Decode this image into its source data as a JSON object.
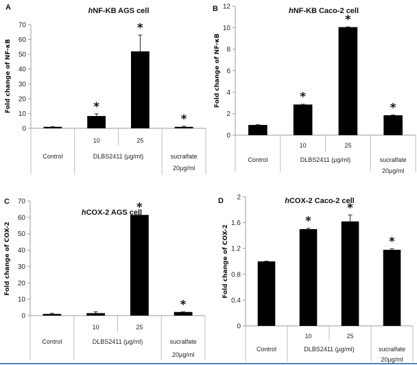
{
  "chart_data": [
    {
      "type": "bar",
      "panel_label": "A",
      "title_italic": "h",
      "title": "NF-KB AGS cell",
      "ylabel": "Fold change of NF-κB",
      "xlabel": "",
      "ylim": [
        0,
        70
      ],
      "yticks": [
        "0",
        "10",
        "20",
        "30",
        "40",
        "50",
        "60",
        "70"
      ],
      "categories": [
        "Control",
        "10",
        "25",
        "sucralfate 20µg/ml"
      ],
      "group_labels": {
        "control": "Control",
        "treatment": "DLBS2411 (µg/ml)",
        "sucralfate_line1": "sucralfate",
        "sucralfate_line2": "20µg/ml",
        "dose1": "10",
        "dose2": "25"
      },
      "values": [
        1.0,
        8.3,
        52.0,
        1.0
      ],
      "errors": [
        0.2,
        1.5,
        11.0,
        0.4
      ],
      "significant": [
        false,
        true,
        true,
        true
      ],
      "significance_marker": "*",
      "grid": false,
      "legend": "none"
    },
    {
      "type": "bar",
      "panel_label": "B",
      "title_italic": "h",
      "title": "NF-KB Caco-2 cell",
      "ylabel": "Fold change of NF-κB",
      "xlabel": "",
      "ylim": [
        0,
        12
      ],
      "yticks": [
        "0",
        "2",
        "4",
        "6",
        "8",
        "10",
        "12"
      ],
      "categories": [
        "Control",
        "10",
        "25",
        "sucralfate 20µg/ml"
      ],
      "group_labels": {
        "control": "Control",
        "treatment": "DLBS2411 (µg/ml)",
        "sucralfate_line1": "sucralfate",
        "sucralfate_line2": "20µg/ml",
        "dose1": "10",
        "dose2": "25"
      },
      "values": [
        0.95,
        2.85,
        10.05,
        1.85
      ],
      "errors": [
        0.03,
        0.05,
        0.05,
        0.04
      ],
      "significant": [
        false,
        true,
        true,
        true
      ],
      "significance_marker": "*",
      "grid": false,
      "legend": "none"
    },
    {
      "type": "bar",
      "panel_label": "C",
      "title_italic": "h",
      "title": "COX-2 AGS cell",
      "ylabel": "Fold change of COX-2",
      "xlabel": "",
      "ylim": [
        0,
        70
      ],
      "yticks": [
        "0",
        "10",
        "20",
        "30",
        "40",
        "50",
        "60",
        "70"
      ],
      "categories": [
        "Control",
        "10",
        "25",
        "sucralfate 20µg/ml"
      ],
      "group_labels": {
        "control": "Control",
        "treatment": "DLBS2411 (µg/ml)",
        "sucralfate_line1": "sucralfate",
        "sucralfate_line2": "20µg/ml",
        "dose1": "10",
        "dose2": "25"
      },
      "values": [
        1.0,
        1.5,
        61.5,
        2.2
      ],
      "errors": [
        0.4,
        0.8,
        0.3,
        0.1
      ],
      "significant": [
        false,
        false,
        true,
        true
      ],
      "significance_marker": "*",
      "grid": false,
      "legend": "none"
    },
    {
      "type": "bar",
      "panel_label": "D",
      "title_italic": "h",
      "title": "COX-2 Caco-2 cell",
      "ylabel": "Fold change of COX-2",
      "xlabel": "",
      "ylim": [
        0,
        2
      ],
      "yticks": [
        "0",
        "0.4",
        "0.8",
        "1.2",
        "1.6",
        "2"
      ],
      "categories": [
        "Control",
        "10",
        "25",
        "sucralfate 20µg/ml"
      ],
      "group_labels": {
        "control": "Control",
        "treatment": "DLBS2411 (µg/ml)",
        "sucralfate_line1": "sucralfate",
        "sucralfate_line2": "20µg/ml",
        "dose1": "10",
        "dose2": "25"
      },
      "values": [
        1.0,
        1.5,
        1.62,
        1.18
      ],
      "errors": [
        0.005,
        0.015,
        0.1,
        0.015
      ],
      "significant": [
        false,
        true,
        true,
        true
      ],
      "significance_marker": "*",
      "grid": false,
      "legend": "none"
    }
  ]
}
